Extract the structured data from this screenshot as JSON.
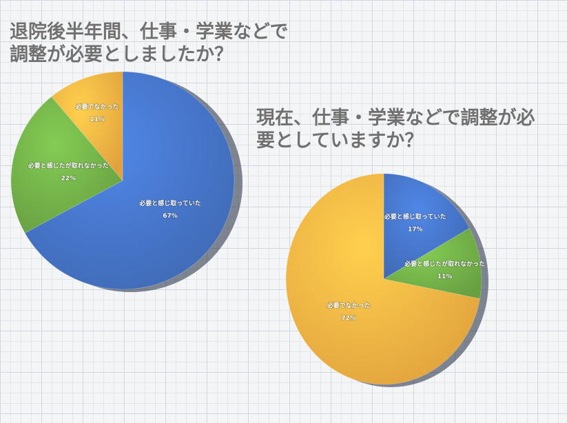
{
  "chart_data": [
    {
      "type": "pie",
      "title": "退院後半年間、仕事・学業などで調整が必要としましたか？",
      "slices": [
        {
          "label": "必要と感じ取っていた",
          "value": 67,
          "display": "67%",
          "color": "#4472c4"
        },
        {
          "label": "必要と感じたが取れなかった",
          "value": 22,
          "display": "22%",
          "color": "#70ad47"
        },
        {
          "label": "必要でなかった",
          "value": 11,
          "display": "11%",
          "color": "#f5b042"
        }
      ]
    },
    {
      "type": "pie",
      "title": "現在、仕事・学業などで調整が必要としていますか？",
      "slices": [
        {
          "label": "必要と感じ取っていた",
          "value": 17,
          "display": "17%",
          "color": "#4472c4"
        },
        {
          "label": "必要と感じたが取れなかった",
          "value": 11,
          "display": "11%",
          "color": "#70ad47"
        },
        {
          "label": "必要でなかった",
          "value": 72,
          "display": "72%",
          "color": "#f5b042"
        }
      ]
    }
  ],
  "titles": {
    "chart1": [
      "退院後半年間、仕事・学業などで",
      "調整が必要としましたか？"
    ],
    "chart2": [
      "現在、仕事・学業などで調整が必",
      "要としていますか？"
    ]
  }
}
